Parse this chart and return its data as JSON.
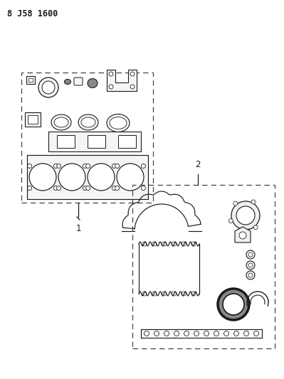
{
  "title": "8 J58 1600",
  "bg_color": "#ffffff",
  "line_color": "#1a1a1a",
  "label1": "1",
  "label2": "2",
  "fig_width": 3.99,
  "fig_height": 5.33,
  "dpi": 100
}
